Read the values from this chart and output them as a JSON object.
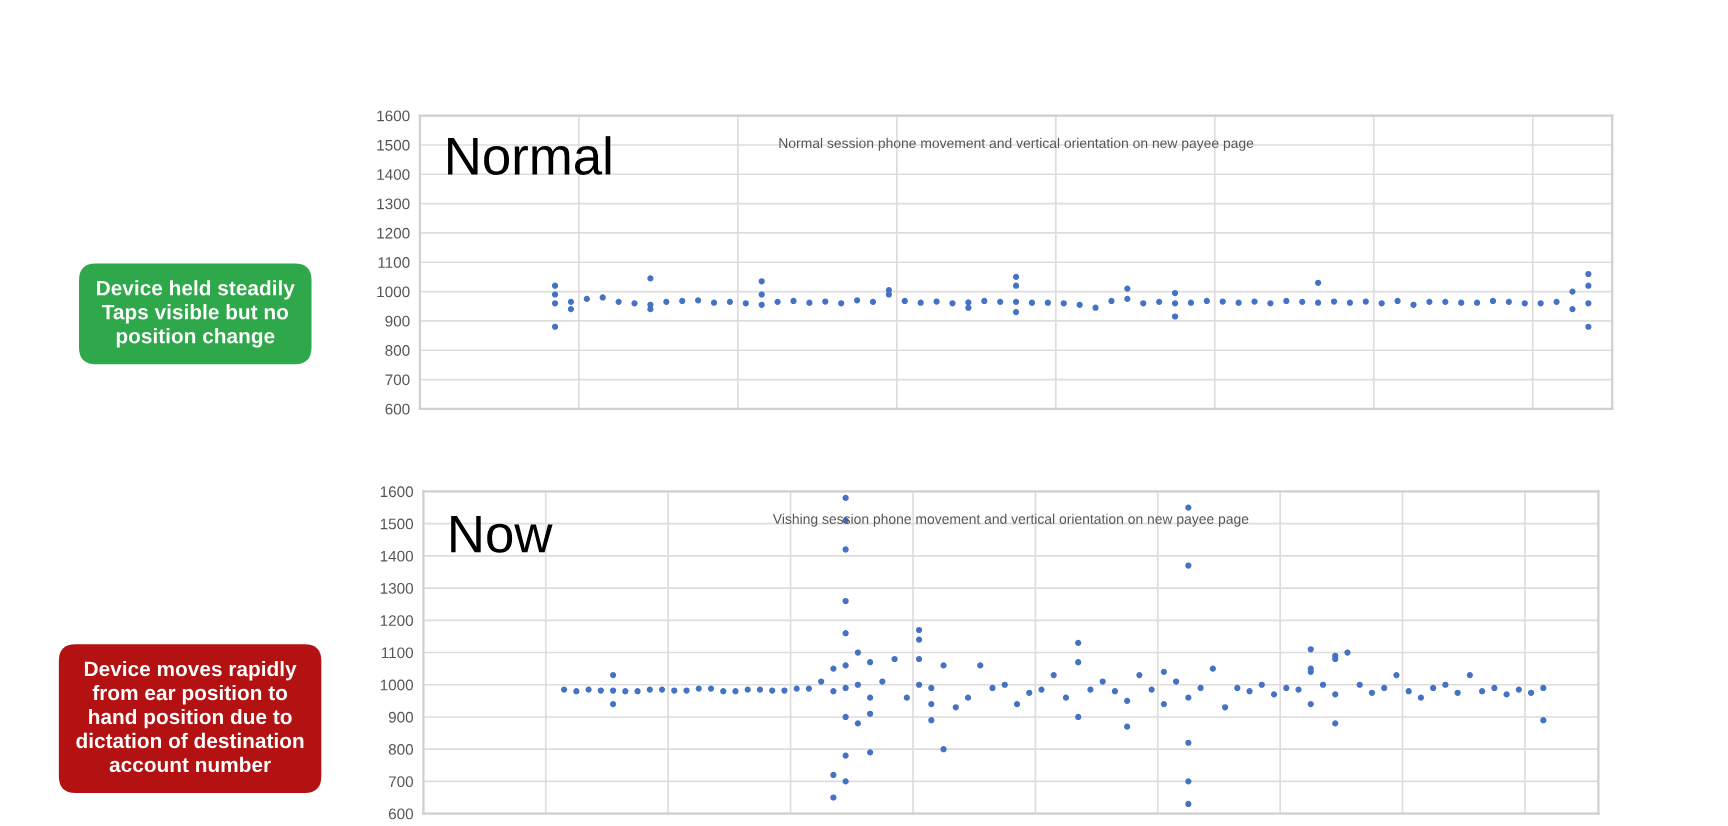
{
  "chart_data": [
    {
      "type": "scatter",
      "title": "Normal session phone movement and vertical orientation on new payee page",
      "annotations": [
        "Normal",
        "Device held steadily\nTaps visible but no\nposition change"
      ],
      "categories": [
        null,
        null,
        null,
        null,
        null,
        null,
        null,
        null,
        null,
        null,
        null,
        null,
        null,
        null,
        null,
        null,
        null,
        null,
        null,
        null,
        null,
        null,
        null,
        null,
        null,
        null,
        null,
        null,
        null,
        null,
        null,
        null,
        null,
        null,
        null,
        null,
        null,
        null,
        null,
        null,
        null,
        null,
        null,
        null,
        null,
        null,
        null,
        null,
        null,
        null,
        null,
        null,
        null,
        null,
        null,
        null,
        null,
        null,
        null,
        null,
        null,
        null,
        null,
        null,
        null,
        null,
        null,
        null,
        null,
        null,
        null,
        null,
        null,
        null,
        null
      ],
      "ylim": [
        600,
        1600
      ],
      "yticks": [
        600,
        700,
        800,
        900,
        1000,
        1100,
        1200,
        1300,
        1400,
        1500,
        1600
      ],
      "tick_labels": "y",
      "grid": true,
      "marker": "circle",
      "series": [
        {
          "color": "#4472c4",
          "values": [
            null,
            null,
            null,
            null,
            null,
            null,
            null,
            null,
            960,
            965,
            975,
            980,
            965,
            960,
            955,
            965,
            968,
            970,
            962,
            965,
            960,
            955,
            965,
            968,
            962,
            966,
            960,
            970,
            965,
            990,
            968,
            962,
            966,
            960,
            963,
            968,
            965,
            965,
            962,
            962,
            960,
            955,
            945,
            968,
            975,
            960,
            965,
            960,
            962,
            968,
            966,
            962,
            966,
            960,
            968,
            965,
            962,
            966,
            962,
            966,
            960,
            968,
            955,
            965,
            965,
            962,
            962,
            968,
            965,
            960,
            960,
            965,
            1000,
            960,
            null
          ]
        },
        {
          "color": "#4472c4",
          "values": [
            null,
            null,
            null,
            null,
            null,
            null,
            null,
            null,
            1020,
            null,
            null,
            null,
            null,
            null,
            1045,
            null,
            null,
            null,
            null,
            null,
            null,
            1035,
            null,
            null,
            null,
            null,
            null,
            null,
            null,
            1005,
            null,
            null,
            null,
            null,
            null,
            null,
            null,
            1050,
            null,
            null,
            null,
            null,
            null,
            null,
            1010,
            null,
            null,
            995,
            null,
            null,
            null,
            null,
            null,
            null,
            null,
            null,
            1030,
            null,
            null,
            null,
            null,
            null,
            null,
            null,
            null,
            null,
            null,
            null,
            null,
            null,
            null,
            null,
            null,
            1060,
            null
          ]
        },
        {
          "color": "#4472c4",
          "values": [
            null,
            null,
            null,
            null,
            null,
            null,
            null,
            null,
            880,
            940,
            null,
            null,
            null,
            null,
            940,
            null,
            null,
            null,
            null,
            null,
            null,
            990,
            null,
            null,
            null,
            null,
            null,
            null,
            null,
            null,
            null,
            null,
            null,
            null,
            945,
            null,
            null,
            1020,
            null,
            null,
            null,
            null,
            null,
            null,
            null,
            null,
            null,
            915,
            null,
            null,
            null,
            null,
            null,
            null,
            null,
            null,
            null,
            null,
            null,
            null,
            null,
            null,
            null,
            null,
            null,
            null,
            null,
            null,
            null,
            null,
            null,
            null,
            940,
            880,
            null
          ]
        },
        {
          "color": "#4472c4",
          "values": [
            null,
            null,
            null,
            null,
            null,
            null,
            null,
            null,
            990,
            null,
            null,
            null,
            null,
            null,
            null,
            null,
            null,
            null,
            null,
            null,
            null,
            null,
            null,
            null,
            null,
            null,
            null,
            null,
            null,
            null,
            null,
            null,
            null,
            null,
            null,
            null,
            null,
            930,
            null,
            null,
            null,
            null,
            null,
            null,
            null,
            null,
            null,
            null,
            null,
            null,
            null,
            null,
            null,
            null,
            null,
            null,
            null,
            null,
            null,
            null,
            null,
            null,
            null,
            null,
            null,
            null,
            null,
            null,
            null,
            null,
            null,
            null,
            null,
            1020,
            null
          ]
        }
      ]
    },
    {
      "type": "scatter",
      "title": "Vishing session phone movement and vertical orientation on new payee page",
      "annotations": [
        "Now",
        "Device moves rapidly\nfrom ear position to\nhand position due to\ndictation of destination\naccount number"
      ],
      "categories": [
        null,
        null,
        null,
        null,
        null,
        null,
        null,
        null,
        null,
        null,
        null,
        null,
        null,
        null,
        null,
        null,
        null,
        null,
        null,
        null,
        null,
        null,
        null,
        null,
        null,
        null,
        null,
        null,
        null,
        null,
        null,
        null,
        null,
        null,
        null,
        null,
        null,
        null,
        null,
        null,
        null,
        null,
        null,
        null,
        null,
        null,
        null,
        null,
        null,
        null,
        null,
        null,
        null,
        null,
        null,
        null,
        null,
        null,
        null,
        null,
        null,
        null,
        null,
        null,
        null,
        null,
        null,
        null,
        null,
        null,
        null,
        null,
        null,
        null,
        null,
        null,
        null,
        null,
        null,
        null,
        null,
        null,
        null,
        null,
        null,
        null,
        null,
        null,
        null,
        null,
        null,
        null,
        null,
        null,
        null,
        null
      ],
      "ylim": [
        600,
        1600
      ],
      "yticks": [
        600,
        700,
        800,
        900,
        1000,
        1100,
        1200,
        1300,
        1400,
        1500,
        1600
      ],
      "tick_labels": "y",
      "grid": true,
      "marker": "circle",
      "series": [
        {
          "color": "#4472c4",
          "values": [
            null,
            null,
            null,
            null,
            null,
            null,
            null,
            null,
            null,
            null,
            null,
            985,
            980,
            985,
            982,
            982,
            980,
            980,
            985,
            985,
            982,
            982,
            988,
            988,
            980,
            980,
            985,
            985,
            982,
            982,
            988,
            988,
            1010,
            980,
            990,
            1000,
            960,
            1010,
            1080,
            960,
            1000,
            990,
            1060,
            930,
            960,
            1060,
            990,
            1000,
            940,
            975,
            985,
            1030,
            960,
            1130,
            985,
            1010,
            980,
            950,
            1030,
            985,
            1040,
            1010,
            960,
            990,
            1050,
            930,
            990,
            980,
            1000,
            970,
            990,
            985,
            1040,
            1000,
            1090,
            1100,
            1000,
            975,
            990,
            1030,
            980,
            960,
            990,
            1000,
            975,
            1030,
            980,
            990,
            970,
            985,
            975,
            990,
            null,
            null,
            null,
            null
          ]
        },
        {
          "color": "#4472c4",
          "values": [
            null,
            null,
            null,
            null,
            null,
            null,
            null,
            null,
            null,
            null,
            null,
            null,
            null,
            null,
            null,
            1030,
            null,
            null,
            null,
            null,
            null,
            null,
            null,
            null,
            null,
            null,
            null,
            null,
            null,
            null,
            null,
            null,
            null,
            null,
            1580,
            null,
            1070,
            null,
            null,
            null,
            1140,
            null,
            800,
            null,
            null,
            null,
            null,
            null,
            null,
            null,
            null,
            null,
            null,
            1070,
            null,
            null,
            null,
            870,
            null,
            null,
            null,
            null,
            1550,
            null,
            null,
            null,
            null,
            null,
            null,
            null,
            null,
            null,
            1110,
            null,
            970,
            null,
            null,
            null,
            null,
            null,
            null,
            null,
            null,
            null,
            null,
            null,
            null,
            null,
            null,
            null,
            null,
            890,
            null,
            null,
            null,
            null
          ]
        },
        {
          "color": "#4472c4",
          "values": [
            null,
            null,
            null,
            null,
            null,
            null,
            null,
            null,
            null,
            null,
            null,
            null,
            null,
            null,
            null,
            940,
            null,
            null,
            null,
            null,
            null,
            null,
            null,
            null,
            null,
            null,
            null,
            null,
            null,
            null,
            null,
            null,
            null,
            null,
            1510,
            null,
            910,
            null,
            null,
            null,
            1170,
            890,
            null,
            null,
            null,
            null,
            null,
            null,
            null,
            null,
            null,
            null,
            null,
            900,
            null,
            null,
            null,
            null,
            null,
            null,
            940,
            null,
            1370,
            null,
            null,
            null,
            null,
            null,
            null,
            null,
            null,
            null,
            1050,
            null,
            1080,
            null,
            null,
            null,
            null,
            null,
            null,
            null,
            null,
            null,
            null,
            null,
            null,
            null,
            null,
            null,
            null,
            null,
            null,
            null,
            null,
            null
          ]
        },
        {
          "color": "#4472c4",
          "values": [
            null,
            null,
            null,
            null,
            null,
            null,
            null,
            null,
            null,
            null,
            null,
            null,
            null,
            null,
            null,
            null,
            null,
            null,
            null,
            null,
            null,
            null,
            null,
            null,
            null,
            null,
            null,
            null,
            null,
            null,
            null,
            null,
            null,
            null,
            1420,
            null,
            790,
            null,
            null,
            null,
            1080,
            940,
            null,
            null,
            null,
            null,
            null,
            null,
            null,
            null,
            null,
            null,
            null,
            null,
            null,
            null,
            null,
            null,
            null,
            null,
            null,
            null,
            820,
            null,
            null,
            null,
            null,
            null,
            null,
            null,
            null,
            null,
            940,
            null,
            880,
            null,
            null,
            null,
            null,
            null,
            null,
            null,
            null,
            null,
            null,
            null,
            null,
            null,
            null,
            null,
            null,
            null,
            null,
            null,
            null,
            null
          ]
        },
        {
          "color": "#4472c4",
          "values": [
            null,
            null,
            null,
            null,
            null,
            null,
            null,
            null,
            null,
            null,
            null,
            null,
            null,
            null,
            null,
            null,
            null,
            null,
            null,
            null,
            null,
            null,
            null,
            null,
            null,
            null,
            null,
            null,
            null,
            null,
            null,
            null,
            null,
            null,
            1260,
            1100,
            null,
            null,
            null,
            null,
            null,
            null,
            null,
            null,
            null,
            null,
            null,
            null,
            null,
            null,
            null,
            null,
            null,
            null,
            null,
            null,
            null,
            null,
            null,
            null,
            null,
            null,
            700,
            null,
            null,
            null,
            null,
            null,
            null,
            null,
            null,
            null,
            null,
            null,
            null,
            null,
            null,
            null,
            null,
            null,
            null,
            null,
            null,
            null,
            null,
            null,
            null,
            null,
            null,
            null,
            null,
            null,
            null,
            null,
            null,
            null
          ]
        },
        {
          "color": "#4472c4",
          "values": [
            null,
            null,
            null,
            null,
            null,
            null,
            null,
            null,
            null,
            null,
            null,
            null,
            null,
            null,
            null,
            null,
            null,
            null,
            null,
            null,
            null,
            null,
            null,
            null,
            null,
            null,
            null,
            null,
            null,
            null,
            null,
            null,
            null,
            null,
            1160,
            880,
            null,
            null,
            null,
            null,
            null,
            null,
            null,
            null,
            null,
            null,
            null,
            null,
            null,
            null,
            null,
            null,
            null,
            null,
            null,
            null,
            null,
            null,
            null,
            null,
            null,
            null,
            630,
            null,
            null,
            null,
            null,
            null,
            null,
            null,
            null,
            null,
            null,
            null,
            null,
            null,
            null,
            null,
            null,
            null,
            null,
            null,
            null,
            null,
            null,
            null,
            null,
            null,
            null,
            null,
            null,
            null,
            null,
            null,
            null,
            null
          ]
        },
        {
          "color": "#4472c4",
          "values": [
            null,
            null,
            null,
            null,
            null,
            null,
            null,
            null,
            null,
            null,
            null,
            null,
            null,
            null,
            null,
            null,
            null,
            null,
            null,
            null,
            null,
            null,
            null,
            null,
            null,
            null,
            null,
            null,
            null,
            null,
            null,
            null,
            null,
            1050,
            900,
            null,
            null,
            null,
            null,
            null,
            null,
            null,
            null,
            null,
            null,
            null,
            null,
            null,
            null,
            null,
            null,
            null,
            null,
            null,
            null,
            null,
            null,
            null,
            null,
            null,
            null,
            null,
            null,
            null,
            null,
            null,
            null,
            null,
            null,
            null,
            null,
            null,
            null,
            null,
            null,
            null,
            null,
            null,
            null,
            null,
            null,
            null,
            null,
            null,
            null,
            null,
            null,
            null,
            null,
            null,
            null,
            null,
            null,
            null,
            null,
            null
          ]
        },
        {
          "color": "#4472c4",
          "values": [
            null,
            null,
            null,
            null,
            null,
            null,
            null,
            null,
            null,
            null,
            null,
            null,
            null,
            null,
            null,
            null,
            null,
            null,
            null,
            null,
            null,
            null,
            null,
            null,
            null,
            null,
            null,
            null,
            null,
            null,
            null,
            null,
            null,
            720,
            780,
            null,
            null,
            null,
            null,
            null,
            null,
            null,
            null,
            null,
            null,
            null,
            null,
            null,
            null,
            null,
            null,
            null,
            null,
            null,
            null,
            null,
            null,
            null,
            null,
            null,
            null,
            null,
            null,
            null,
            null,
            null,
            null,
            null,
            null,
            null,
            null,
            null,
            null,
            null,
            null,
            null,
            null,
            null,
            null,
            null,
            null,
            null,
            null,
            null,
            null,
            null,
            null,
            null,
            null,
            null,
            null,
            null,
            null,
            null,
            null,
            null
          ]
        },
        {
          "color": "#4472c4",
          "values": [
            null,
            null,
            null,
            null,
            null,
            null,
            null,
            null,
            null,
            null,
            null,
            null,
            null,
            null,
            null,
            null,
            null,
            null,
            null,
            null,
            null,
            null,
            null,
            null,
            null,
            null,
            null,
            null,
            null,
            null,
            null,
            null,
            null,
            650,
            700,
            null,
            null,
            null,
            null,
            null,
            null,
            null,
            null,
            null,
            null,
            null,
            null,
            null,
            null,
            null,
            null,
            null,
            null,
            null,
            null,
            null,
            null,
            null,
            null,
            null,
            null,
            null,
            null,
            null,
            null,
            null,
            null,
            null,
            null,
            null,
            null,
            null,
            null,
            null,
            null,
            null,
            null,
            null,
            null,
            null,
            null,
            null,
            null,
            null,
            null,
            null,
            null,
            null,
            null,
            null,
            null,
            null,
            null,
            null,
            null,
            null
          ]
        },
        {
          "color": "#4472c4",
          "values": [
            null,
            null,
            null,
            null,
            null,
            null,
            null,
            null,
            null,
            null,
            null,
            null,
            null,
            null,
            null,
            null,
            null,
            null,
            null,
            null,
            null,
            null,
            null,
            null,
            null,
            null,
            null,
            null,
            null,
            null,
            null,
            null,
            null,
            null,
            1060,
            null,
            null,
            null,
            null,
            null,
            null,
            null,
            null,
            null,
            null,
            null,
            null,
            null,
            null,
            null,
            null,
            null,
            null,
            null,
            null,
            null,
            null,
            null,
            null,
            null,
            null,
            null,
            null,
            null,
            null,
            null,
            null,
            null,
            null,
            null,
            null,
            null,
            null,
            null,
            null,
            null,
            null,
            null,
            null,
            null,
            null,
            null,
            null,
            null,
            null,
            null,
            null,
            null,
            null,
            null,
            null,
            null,
            null,
            null,
            null,
            null
          ]
        }
      ]
    }
  ]
}
